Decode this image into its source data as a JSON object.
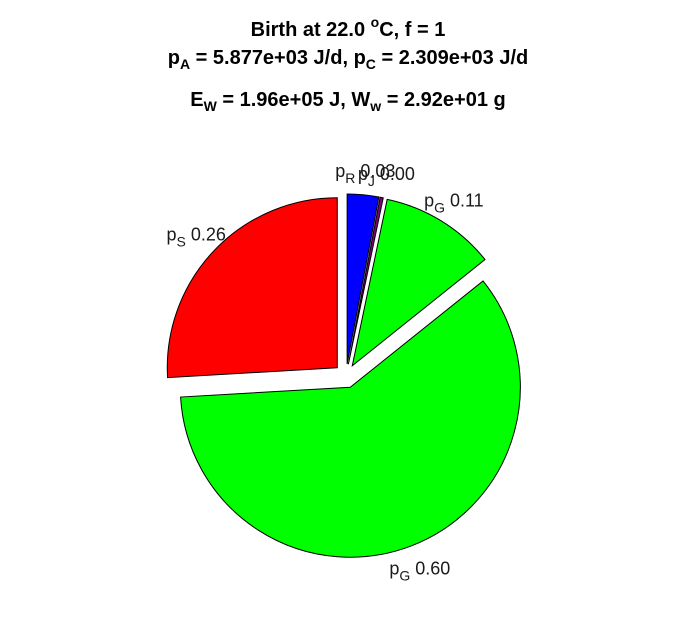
{
  "chart_data": {
    "type": "pie",
    "title": {
      "line1": {
        "text": "Birth at 22.0 ",
        "sup": "o",
        "tail": "C, f = 1"
      },
      "line2": {
        "p1": "p",
        "p1_sub": "A",
        "mid": " = 5.877e+03 J/d, ",
        "p2": "p",
        "p2_sub": "C",
        "tail": " = 2.309e+03 J/d"
      },
      "line3": {
        "p1": "E",
        "p1_sub": "W",
        "mid": " = 1.96e+05 J, ",
        "p2": "W",
        "p2_sub": "w",
        "tail": " = 2.92e+01 g"
      }
    },
    "slices": [
      {
        "name": "p",
        "sub": "R",
        "value": 0.03,
        "label": "0.03",
        "color": "#0000ff",
        "explode": true
      },
      {
        "name": "p",
        "sub": "J",
        "value": 0.003,
        "label": "0.00",
        "color": "#800080",
        "explode": true
      },
      {
        "name": "p",
        "sub": "G",
        "value": 0.11,
        "label": "0.11",
        "color": "#00ff00",
        "explode": true
      },
      {
        "name": "p",
        "sub": "G",
        "value": 0.6,
        "label": "0.60",
        "color": "#00ff00",
        "explode": true
      },
      {
        "name": "p",
        "sub": "S",
        "value": 0.26,
        "label": "0.26",
        "color": "#ff0000",
        "explode": true
      }
    ],
    "start_angle_deg": 90,
    "direction": "clockwise",
    "legend": "none"
  }
}
